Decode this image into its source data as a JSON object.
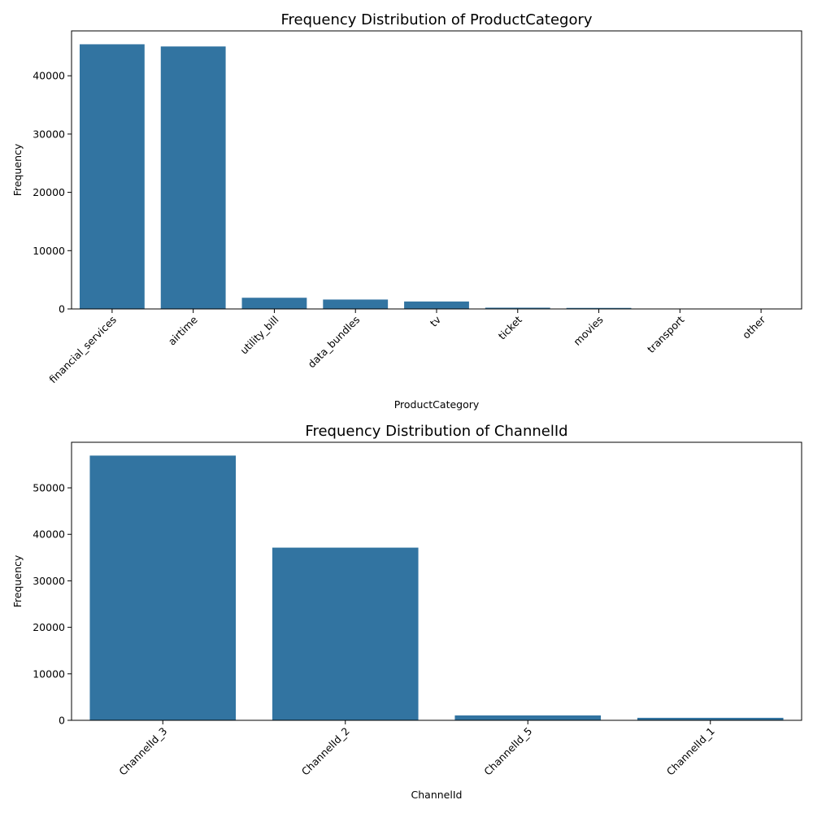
{
  "chart_data": [
    {
      "type": "bar",
      "title": "Frequency Distribution of ProductCategory",
      "xlabel": "ProductCategory",
      "ylabel": "Frequency",
      "categories": [
        "financial_services",
        "airtime",
        "utility_bill",
        "data_bundles",
        "tv",
        "ticket",
        "movies",
        "transport",
        "other"
      ],
      "values": [
        45405,
        45027,
        1920,
        1613,
        1279,
        216,
        175,
        25,
        2
      ],
      "ylim": [
        0,
        47700
      ],
      "yticks": [
        0,
        10000,
        20000,
        30000,
        40000
      ],
      "ytick_labels": [
        "0",
        "10000",
        "20000",
        "30000",
        "40000"
      ],
      "grid": false,
      "bar_color": "#3274a1"
    },
    {
      "type": "bar",
      "title": "Frequency Distribution of ChannelId",
      "xlabel": "ChannelId",
      "ylabel": "Frequency",
      "categories": [
        "ChannelId_3",
        "ChannelId_2",
        "ChannelId_5",
        "ChannelId_1"
      ],
      "values": [
        56935,
        37141,
        1048,
        538
      ],
      "ylim": [
        0,
        59800
      ],
      "yticks": [
        0,
        10000,
        20000,
        30000,
        40000,
        50000
      ],
      "ytick_labels": [
        "0",
        "10000",
        "20000",
        "30000",
        "40000",
        "50000"
      ],
      "grid": false,
      "bar_color": "#3274a1"
    }
  ]
}
